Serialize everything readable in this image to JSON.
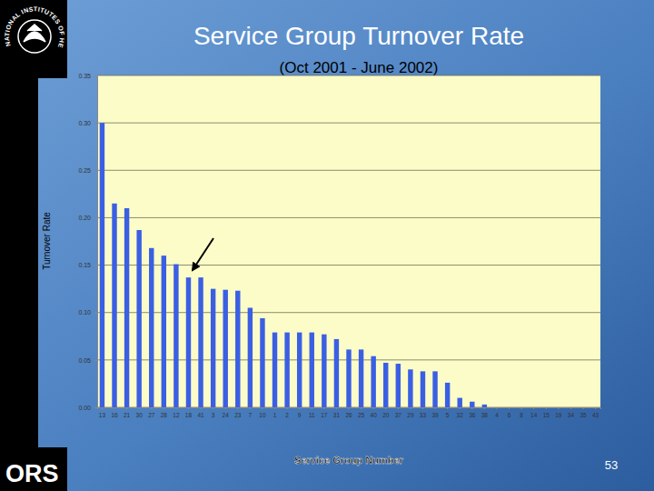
{
  "chart_data": {
    "type": "bar",
    "title": "Service Group Turnover Rate",
    "subtitle": "(Oct 2001 - June 2002)",
    "x_label": "Service Group Number",
    "y_label": "Turnover Rate",
    "categories": [
      "13",
      "16",
      "21",
      "30",
      "27",
      "28",
      "12",
      "18",
      "41",
      "3",
      "24",
      "23",
      "7",
      "10",
      "1",
      "2",
      "9",
      "11",
      "17",
      "31",
      "26",
      "25",
      "40",
      "20",
      "37",
      "29",
      "33",
      "39",
      "5",
      "32",
      "36",
      "38",
      "4",
      "6",
      "8",
      "14",
      "15",
      "19",
      "34",
      "35",
      "43"
    ],
    "values": [
      0.3,
      0.215,
      0.21,
      0.187,
      0.168,
      0.16,
      0.151,
      0.137,
      0.137,
      0.125,
      0.124,
      0.123,
      0.105,
      0.094,
      0.079,
      0.079,
      0.079,
      0.079,
      0.077,
      0.072,
      0.061,
      0.061,
      0.054,
      0.047,
      0.046,
      0.04,
      0.038,
      0.038,
      0.026,
      0.01,
      0.006,
      0.003,
      0,
      0,
      0,
      0,
      0,
      0,
      0,
      0,
      0
    ],
    "color": "#3b5fe3",
    "ylim": [
      0,
      0.35
    ],
    "yticks": [
      {
        "value": 0,
        "label": "0.00"
      },
      0.05,
      {
        "value": 0.1,
        "label": "0.10"
      },
      0.15,
      {
        "value": 0.2,
        "label": "0.20"
      },
      0.25,
      {
        "value": 0.3,
        "label": "0.30"
      },
      0.35
    ],
    "grid": true,
    "annotations": [
      "NATIONAL INSTITUTES OF HEALTH",
      "ORS",
      "53"
    ]
  }
}
